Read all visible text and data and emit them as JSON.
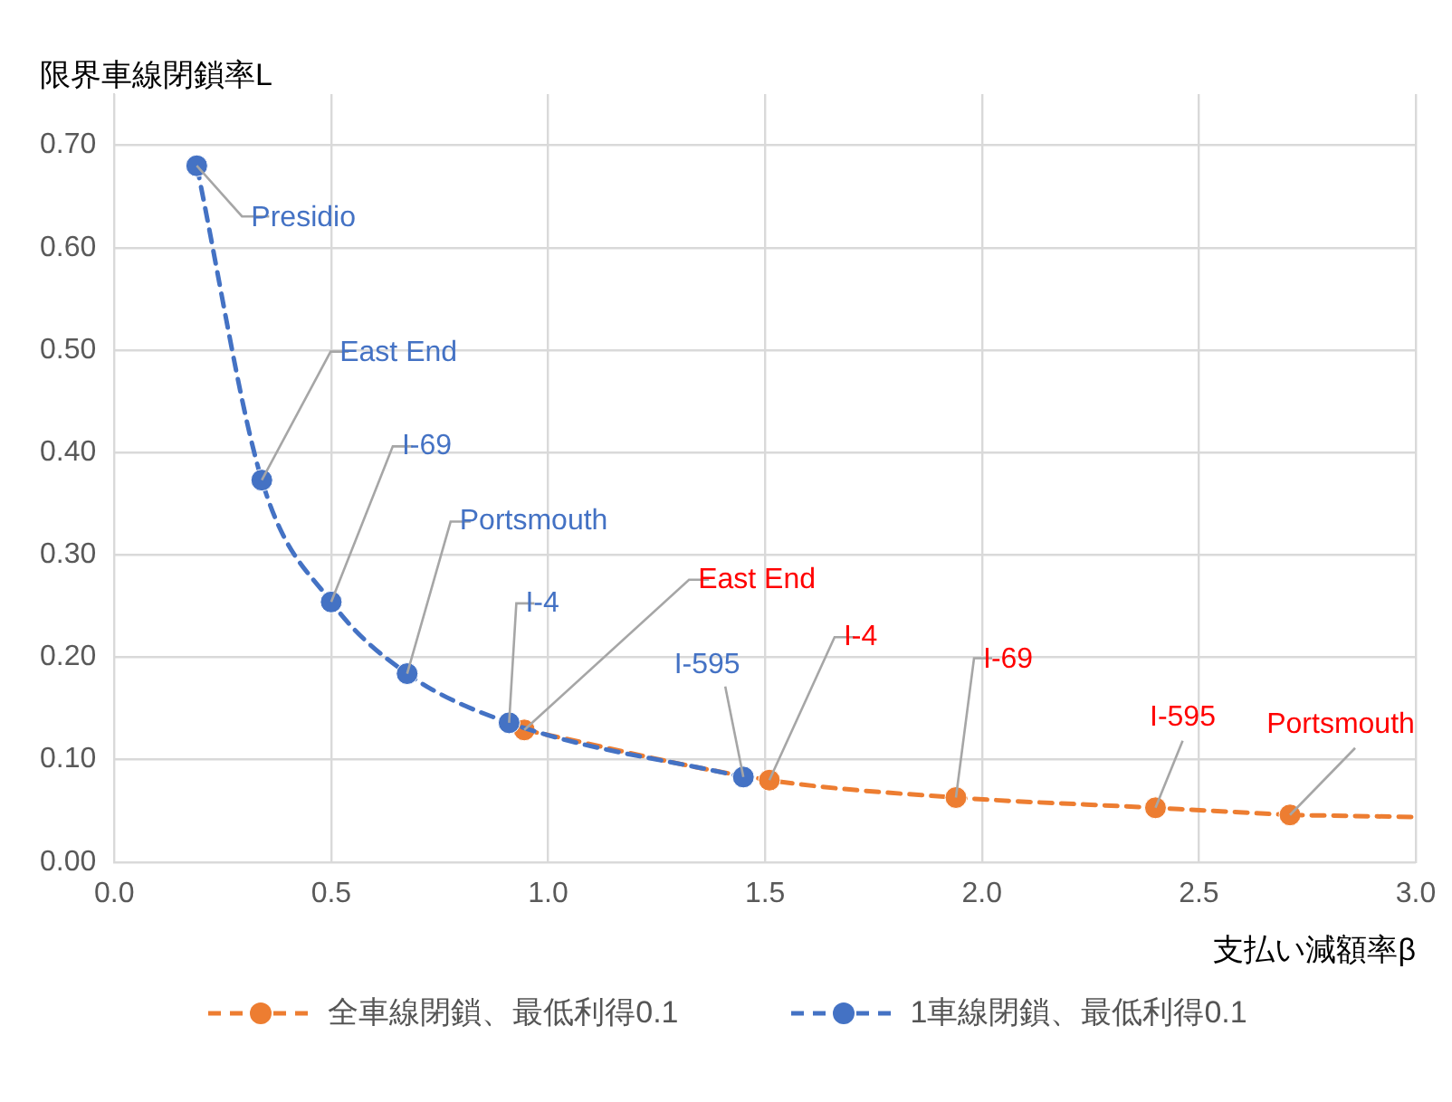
{
  "chart_data": {
    "type": "line",
    "xlabel": "支払い減額率β",
    "ylabel": "限界車線閉鎖率L",
    "xlim": [
      0,
      3
    ],
    "xticks": [
      {
        "value": 0,
        "label": "0.0"
      },
      {
        "value": 0.5,
        "label": "0.5"
      },
      {
        "value": 1,
        "label": "1.0"
      },
      {
        "value": 1.5,
        "label": "1.5"
      },
      {
        "value": 2,
        "label": "2.0"
      },
      {
        "value": 2.5,
        "label": "2.5"
      },
      {
        "value": 3,
        "label": "3.0"
      }
    ],
    "ylim": [
      0,
      0.75
    ],
    "yticks": [
      {
        "value": 0,
        "label": "0.00"
      },
      {
        "value": 0.1,
        "label": "0.10"
      },
      {
        "value": 0.2,
        "label": "0.20"
      },
      {
        "value": 0.3,
        "label": "0.30"
      },
      {
        "value": 0.4,
        "label": "0.40"
      },
      {
        "value": 0.5,
        "label": "0.50"
      },
      {
        "value": 0.6,
        "label": "0.60"
      },
      {
        "value": 0.7,
        "label": "0.70"
      }
    ],
    "grid": true,
    "legend": "bottom",
    "line_style": "dashed",
    "series": [
      {
        "name": "全車線閉鎖、最低利得0.1",
        "color": "#ed7d31",
        "marker": "circle",
        "x": [
          0.945,
          1.51,
          1.94,
          2.4,
          2.71
        ],
        "values": [
          0.129,
          0.08,
          0.063,
          0.053,
          0.046
        ]
      },
      {
        "type": "line",
        "color": "#ed7d31",
        "marker": "none",
        "x": [
          2.71,
          3.0
        ],
        "values": [
          0.046,
          0.044
        ]
      },
      {
        "name": "1車線閉鎖、最低利得0.1",
        "color": "#4472c4",
        "marker": "circle",
        "x": [
          0.19,
          0.34,
          0.5,
          0.675,
          0.91,
          1.45
        ],
        "values": [
          0.68,
          0.373,
          0.254,
          0.184,
          0.136,
          0.083
        ]
      }
    ],
    "annotations": [
      {
        "text": "Presidio",
        "x": 0.19,
        "y": 0.68
      },
      {
        "text": "East End",
        "x": 0.34,
        "y": 0.373
      },
      {
        "text": "I-69",
        "x": 0.5,
        "y": 0.254
      },
      {
        "text": "Portsmouth",
        "x": 0.675,
        "y": 0.184
      },
      {
        "text": "I-4",
        "x": 0.91,
        "y": 0.136
      },
      {
        "text": "East End",
        "x": 0.945,
        "y": 0.129
      },
      {
        "text": "I-595",
        "x": 1.45,
        "y": 0.083
      },
      {
        "text": "I-4",
        "x": 1.51,
        "y": 0.08
      },
      {
        "text": "I-69",
        "x": 1.94,
        "y": 0.063
      },
      {
        "text": "I-595",
        "x": 2.4,
        "y": 0.053
      },
      {
        "text": "Portsmouth",
        "x": 2.71,
        "y": 0.046
      }
    ]
  }
}
